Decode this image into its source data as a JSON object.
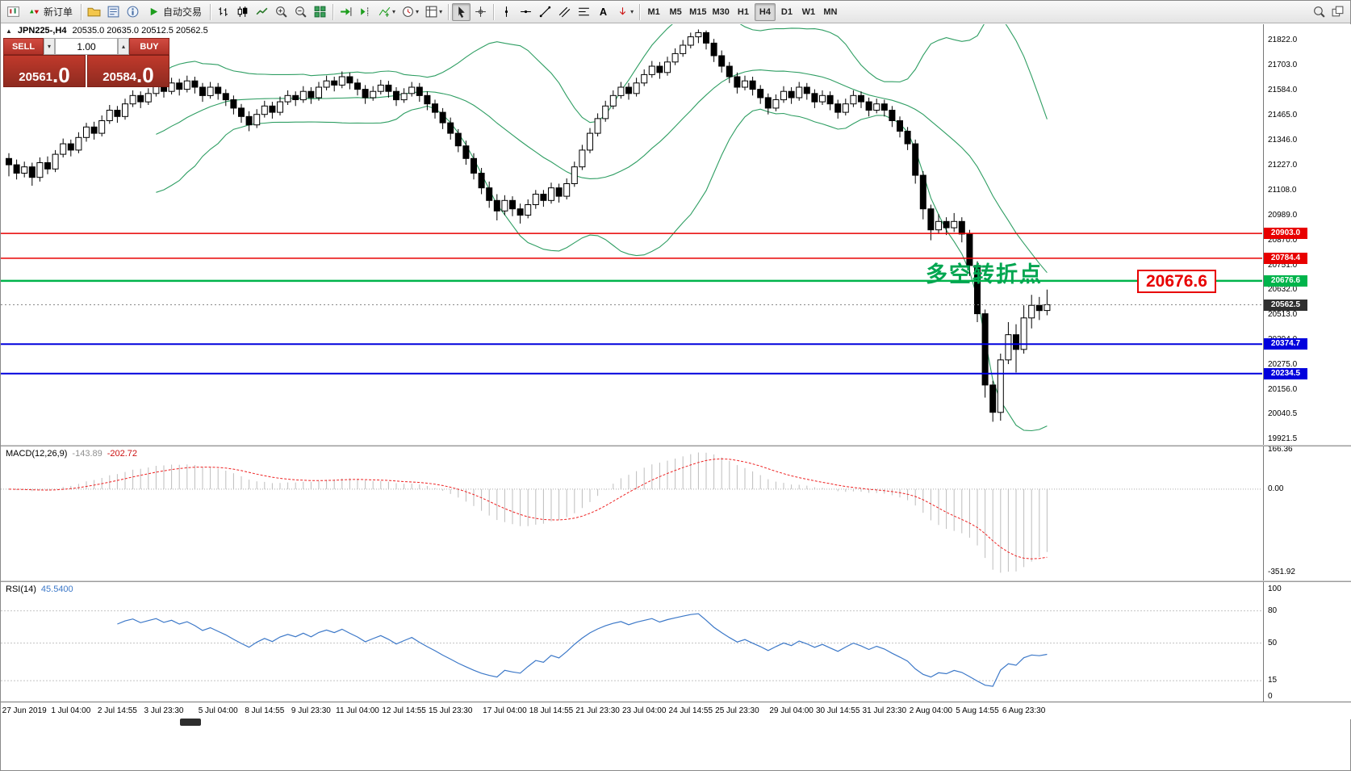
{
  "colors": {
    "bollinger": "#2f9e63",
    "macd_hist": "#bdbdbd",
    "macd_signal": "#ee2222",
    "rsi_line": "#3c78c8",
    "current_price_bg": "#2f2f2f"
  },
  "window": {
    "symbol_period": "JPN225-,H4",
    "ohlc": "20535.0 20635.0 20512.5 20562.5"
  },
  "toolbar": {
    "new_order_label": "新订单",
    "autotrading_label": "自动交易",
    "timeframes": [
      "M1",
      "M5",
      "M15",
      "M30",
      "H1",
      "H4",
      "D1",
      "W1",
      "MN"
    ],
    "active_timeframe": "H4"
  },
  "one_click": {
    "sell_label": "SELL",
    "buy_label": "BUY",
    "volume": "1.00",
    "sell_price_main": "20561",
    "sell_price_pips": ".0",
    "buy_price_main": "20584",
    "buy_price_pips": ".0"
  },
  "chart": {
    "annotation": "多空转折点",
    "callout_price": "20676.6",
    "current_price": {
      "label": "20562.5",
      "price": 20562.5
    },
    "levels": [
      {
        "price": 20903.0,
        "label": "20903.0",
        "color": "#e80000",
        "width": 1.5
      },
      {
        "price": 20784.4,
        "label": "20784.4",
        "color": "#e80000",
        "width": 1.5
      },
      {
        "price": 20676.6,
        "label": "20676.6",
        "color": "#00b44b",
        "width": 2.5
      },
      {
        "price": 20374.7,
        "label": "20374.7",
        "color": "#0000dd",
        "width": 2
      },
      {
        "price": 20234.5,
        "label": "20234.5",
        "color": "#0000dd",
        "width": 2
      }
    ],
    "price_axis_ticks": [
      "21822.0",
      "21703.0",
      "21584.0",
      "21465.0",
      "21346.0",
      "21227.0",
      "21108.0",
      "20989.0",
      "20870.0",
      "20751.0",
      "20632.0",
      "20513.0",
      "20394.0",
      "20275.0",
      "20156.0",
      "20040.5",
      "19921.5"
    ]
  },
  "macd": {
    "name": "MACD(12,26,9)",
    "value_main": "-143.89",
    "value_signal": "-202.72",
    "ticks": [
      "166.36",
      "0.00",
      "-351.92"
    ]
  },
  "rsi": {
    "name": "RSI(14)",
    "value": "45.5400",
    "ticks": [
      "100",
      "80",
      "50",
      "15",
      "0"
    ],
    "levels": [
      80,
      50,
      15
    ]
  },
  "time_axis": [
    {
      "t": "27 Jun 2019",
      "i": 2
    },
    {
      "t": "1 Jul 04:00",
      "i": 8
    },
    {
      "t": "2 Jul 14:55",
      "i": 14
    },
    {
      "t": "3 Jul 23:30",
      "i": 20
    },
    {
      "t": "5 Jul 04:00",
      "i": 27
    },
    {
      "t": "8 Jul 14:55",
      "i": 33
    },
    {
      "t": "9 Jul 23:30",
      "i": 39
    },
    {
      "t": "11 Jul 04:00",
      "i": 45
    },
    {
      "t": "12 Jul 14:55",
      "i": 51
    },
    {
      "t": "15 Jul 23:30",
      "i": 57
    },
    {
      "t": "17 Jul 04:00",
      "i": 64
    },
    {
      "t": "18 Jul 14:55",
      "i": 70
    },
    {
      "t": "21 Jul 23:30",
      "i": 76
    },
    {
      "t": "23 Jul 04:00",
      "i": 82
    },
    {
      "t": "24 Jul 14:55",
      "i": 88
    },
    {
      "t": "25 Jul 23:30",
      "i": 94
    },
    {
      "t": "29 Jul 04:00",
      "i": 101
    },
    {
      "t": "30 Jul 14:55",
      "i": 107
    },
    {
      "t": "31 Jul 23:30",
      "i": 113
    },
    {
      "t": "2 Aug 04:00",
      "i": 119
    },
    {
      "t": "5 Aug 14:55",
      "i": 125
    },
    {
      "t": "6 Aug 23:30",
      "i": 131
    }
  ],
  "chart_data": {
    "type": "candlestick",
    "symbol": "JPN225-",
    "timeframe": "H4",
    "bollinger": {
      "period": 20,
      "deviation": 2
    },
    "price_range": [
      19895,
      21900
    ],
    "candles": [
      [
        21260,
        21285,
        21175,
        21230
      ],
      [
        21230,
        21255,
        21160,
        21190
      ],
      [
        21190,
        21245,
        21170,
        21220
      ],
      [
        21220,
        21240,
        21130,
        21170
      ],
      [
        21170,
        21265,
        21150,
        21240
      ],
      [
        21240,
        21270,
        21185,
        21210
      ],
      [
        21210,
        21300,
        21195,
        21280
      ],
      [
        21280,
        21355,
        21265,
        21330
      ],
      [
        21330,
        21350,
        21270,
        21300
      ],
      [
        21300,
        21385,
        21285,
        21360
      ],
      [
        21360,
        21430,
        21340,
        21410
      ],
      [
        21410,
        21435,
        21350,
        21380
      ],
      [
        21380,
        21465,
        21365,
        21440
      ],
      [
        21440,
        21515,
        21425,
        21490
      ],
      [
        21490,
        21510,
        21430,
        21460
      ],
      [
        21460,
        21545,
        21445,
        21520
      ],
      [
        21520,
        21585,
        21505,
        21560
      ],
      [
        21560,
        21580,
        21500,
        21530
      ],
      [
        21530,
        21595,
        21515,
        21570
      ],
      [
        21570,
        21635,
        21555,
        21610
      ],
      [
        21610,
        21630,
        21550,
        21580
      ],
      [
        21580,
        21645,
        21565,
        21620
      ],
      [
        21620,
        21640,
        21560,
        21590
      ],
      [
        21590,
        21655,
        21575,
        21630
      ],
      [
        21630,
        21650,
        21570,
        21600
      ],
      [
        21600,
        21620,
        21530,
        21560
      ],
      [
        21560,
        21625,
        21545,
        21600
      ],
      [
        21600,
        21620,
        21540,
        21570
      ],
      [
        21570,
        21590,
        21510,
        21540
      ],
      [
        21540,
        21560,
        21470,
        21500
      ],
      [
        21500,
        21520,
        21430,
        21460
      ],
      [
        21460,
        21485,
        21390,
        21420
      ],
      [
        21420,
        21495,
        21405,
        21470
      ],
      [
        21470,
        21535,
        21455,
        21510
      ],
      [
        21510,
        21530,
        21450,
        21480
      ],
      [
        21480,
        21555,
        21465,
        21530
      ],
      [
        21530,
        21585,
        21515,
        21560
      ],
      [
        21560,
        21580,
        21510,
        21540
      ],
      [
        21540,
        21605,
        21525,
        21580
      ],
      [
        21580,
        21600,
        21520,
        21550
      ],
      [
        21550,
        21625,
        21535,
        21600
      ],
      [
        21600,
        21655,
        21585,
        21630
      ],
      [
        21630,
        21650,
        21580,
        21610
      ],
      [
        21610,
        21675,
        21595,
        21650
      ],
      [
        21650,
        21670,
        21590,
        21620
      ],
      [
        21620,
        21640,
        21560,
        21590
      ],
      [
        21590,
        21610,
        21520,
        21550
      ],
      [
        21550,
        21605,
        21535,
        21580
      ],
      [
        21580,
        21635,
        21565,
        21610
      ],
      [
        21610,
        21630,
        21550,
        21580
      ],
      [
        21580,
        21600,
        21510,
        21540
      ],
      [
        21540,
        21595,
        21525,
        21570
      ],
      [
        21570,
        21625,
        21555,
        21600
      ],
      [
        21600,
        21620,
        21530,
        21560
      ],
      [
        21560,
        21580,
        21490,
        21520
      ],
      [
        21520,
        21540,
        21450,
        21480
      ],
      [
        21480,
        21500,
        21400,
        21430
      ],
      [
        21430,
        21455,
        21350,
        21380
      ],
      [
        21380,
        21400,
        21290,
        21320
      ],
      [
        21320,
        21345,
        21230,
        21260
      ],
      [
        21260,
        21285,
        21160,
        21190
      ],
      [
        21190,
        21215,
        21090,
        21120
      ],
      [
        21120,
        21150,
        21025,
        21060
      ],
      [
        21060,
        21090,
        20965,
        21010
      ],
      [
        21010,
        21085,
        20990,
        21060
      ],
      [
        21060,
        21080,
        20985,
        21020
      ],
      [
        21020,
        21045,
        20950,
        20990
      ],
      [
        20990,
        21065,
        20975,
        21040
      ],
      [
        21040,
        21110,
        21020,
        21090
      ],
      [
        21090,
        21110,
        21030,
        21060
      ],
      [
        21060,
        21145,
        21045,
        21120
      ],
      [
        21120,
        21140,
        21050,
        21080
      ],
      [
        21080,
        21165,
        21065,
        21140
      ],
      [
        21140,
        21245,
        21125,
        21220
      ],
      [
        21220,
        21325,
        21205,
        21300
      ],
      [
        21300,
        21405,
        21285,
        21380
      ],
      [
        21380,
        21475,
        21365,
        21450
      ],
      [
        21450,
        21535,
        21435,
        21510
      ],
      [
        21510,
        21585,
        21495,
        21560
      ],
      [
        21560,
        21625,
        21545,
        21600
      ],
      [
        21600,
        21620,
        21540,
        21570
      ],
      [
        21570,
        21645,
        21555,
        21620
      ],
      [
        21620,
        21685,
        21605,
        21660
      ],
      [
        21660,
        21725,
        21645,
        21700
      ],
      [
        21700,
        21720,
        21640,
        21670
      ],
      [
        21670,
        21745,
        21655,
        21720
      ],
      [
        21720,
        21785,
        21705,
        21760
      ],
      [
        21760,
        21825,
        21745,
        21800
      ],
      [
        21800,
        21860,
        21785,
        21840
      ],
      [
        21840,
        21875,
        21810,
        21860
      ],
      [
        21860,
        21870,
        21780,
        21810
      ],
      [
        21810,
        21830,
        21720,
        21750
      ],
      [
        21750,
        21775,
        21670,
        21700
      ],
      [
        21700,
        21720,
        21620,
        21650
      ],
      [
        21650,
        21670,
        21570,
        21600
      ],
      [
        21600,
        21655,
        21585,
        21630
      ],
      [
        21630,
        21650,
        21560,
        21590
      ],
      [
        21590,
        21610,
        21520,
        21550
      ],
      [
        21550,
        21570,
        21470,
        21500
      ],
      [
        21500,
        21565,
        21485,
        21540
      ],
      [
        21540,
        21605,
        21525,
        21580
      ],
      [
        21580,
        21600,
        21520,
        21550
      ],
      [
        21550,
        21625,
        21535,
        21600
      ],
      [
        21600,
        21620,
        21540,
        21570
      ],
      [
        21570,
        21590,
        21500,
        21530
      ],
      [
        21530,
        21585,
        21515,
        21560
      ],
      [
        21560,
        21580,
        21490,
        21520
      ],
      [
        21520,
        21540,
        21450,
        21480
      ],
      [
        21480,
        21545,
        21465,
        21520
      ],
      [
        21520,
        21585,
        21505,
        21560
      ],
      [
        21560,
        21580,
        21500,
        21530
      ],
      [
        21530,
        21550,
        21460,
        21490
      ],
      [
        21490,
        21545,
        21475,
        21520
      ],
      [
        21520,
        21540,
        21460,
        21490
      ],
      [
        21490,
        21510,
        21410,
        21440
      ],
      [
        21440,
        21460,
        21360,
        21390
      ],
      [
        21390,
        21410,
        21300,
        21330
      ],
      [
        21330,
        21350,
        21140,
        21180
      ],
      [
        21180,
        21200,
        20970,
        21020
      ],
      [
        21020,
        21040,
        20870,
        20920
      ],
      [
        20920,
        20995,
        20900,
        20960
      ],
      [
        20960,
        20980,
        20895,
        20930
      ],
      [
        20930,
        21000,
        20910,
        20960
      ],
      [
        20960,
        20980,
        20860,
        20900
      ],
      [
        20900,
        20920,
        20700,
        20750
      ],
      [
        20750,
        20770,
        20480,
        20520
      ],
      [
        20520,
        20540,
        20120,
        20180
      ],
      [
        20180,
        20200,
        20005,
        20050
      ],
      [
        20050,
        20330,
        20010,
        20300
      ],
      [
        20300,
        20480,
        20280,
        20420
      ],
      [
        20420,
        20470,
        20240,
        20350
      ],
      [
        20350,
        20560,
        20330,
        20500
      ],
      [
        20500,
        20610,
        20450,
        20560
      ],
      [
        20560,
        20600,
        20490,
        20535
      ],
      [
        20535,
        20635,
        20512.5,
        20562.5
      ]
    ]
  }
}
